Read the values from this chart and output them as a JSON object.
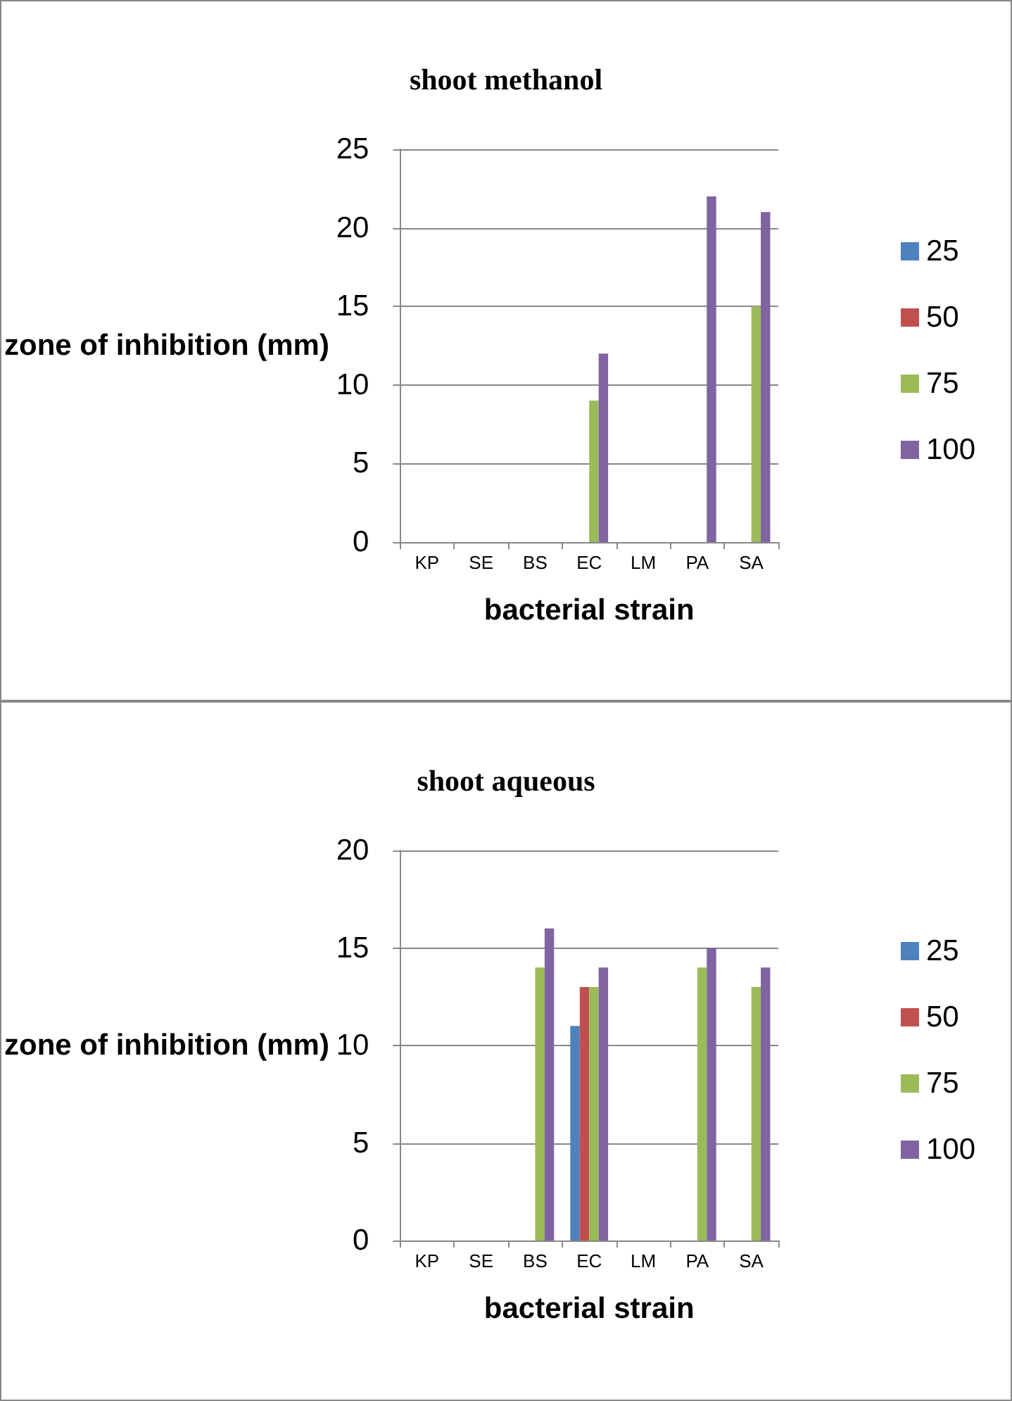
{
  "chart_data": [
    {
      "type": "bar",
      "title": "shoot methanol",
      "xlabel": "bacterial strain",
      "ylabel": "zone of inhibition (mm)",
      "categories": [
        "KP",
        "SE",
        "BS",
        "EC",
        "LM",
        "PA",
        "SA"
      ],
      "series": [
        {
          "name": "25",
          "color": "#4f81bd",
          "values": [
            0,
            0,
            0,
            0,
            0,
            0,
            0
          ]
        },
        {
          "name": "50",
          "color": "#c0504d",
          "values": [
            0,
            0,
            0,
            0,
            0,
            0,
            0
          ]
        },
        {
          "name": "75",
          "color": "#9bbb59",
          "values": [
            0,
            0,
            0,
            9,
            0,
            0,
            15
          ]
        },
        {
          "name": "100",
          "color": "#8064a2",
          "values": [
            0,
            0,
            0,
            12,
            0,
            22,
            21
          ]
        }
      ],
      "ylim": [
        0,
        25
      ],
      "yticks": [
        0,
        5,
        10,
        15,
        20,
        25
      ],
      "grid": "y",
      "legend": "right"
    },
    {
      "type": "bar",
      "title": "shoot aqueous",
      "xlabel": "bacterial strain",
      "ylabel": "zone of inhibition (mm)",
      "categories": [
        "KP",
        "SE",
        "BS",
        "EC",
        "LM",
        "PA",
        "SA"
      ],
      "series": [
        {
          "name": "25",
          "color": "#4f81bd",
          "values": [
            0,
            0,
            0,
            11,
            0,
            0,
            0
          ]
        },
        {
          "name": "50",
          "color": "#c0504d",
          "values": [
            0,
            0,
            0,
            13,
            0,
            0,
            0
          ]
        },
        {
          "name": "75",
          "color": "#9bbb59",
          "values": [
            0,
            0,
            14,
            13,
            0,
            14,
            13
          ]
        },
        {
          "name": "100",
          "color": "#8064a2",
          "values": [
            0,
            0,
            16,
            14,
            0,
            15,
            14
          ]
        }
      ],
      "ylim": [
        0,
        20
      ],
      "yticks": [
        0,
        5,
        10,
        15,
        20
      ],
      "grid": "y",
      "legend": "right"
    }
  ]
}
